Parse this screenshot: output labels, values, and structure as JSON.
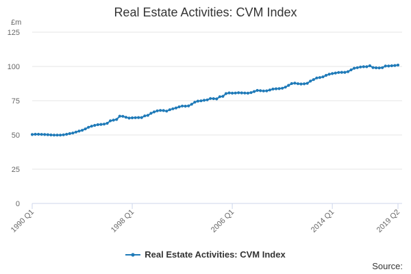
{
  "chart_data": {
    "type": "line",
    "title": "Real Estate Activities: CVM Index",
    "ylabel_unit": "£m",
    "ylim": [
      0,
      125
    ],
    "y_ticks": [
      0,
      25,
      50,
      75,
      100,
      125
    ],
    "x_tick_labels": [
      "1990 Q1",
      "1998 Q1",
      "2006 Q1",
      "2014 Q1",
      "2019 Q2"
    ],
    "x_tick_indices": [
      0,
      32,
      64,
      96,
      117
    ],
    "grid": "horizontal",
    "legend_position": "bottom",
    "color": "#1f7ab8",
    "series": [
      {
        "name": "Real Estate Activities: CVM Index",
        "values": [
          50.3,
          50.5,
          50.5,
          50.4,
          50.3,
          50.2,
          50.0,
          49.9,
          49.9,
          49.9,
          50.1,
          50.5,
          51.0,
          51.4,
          52.1,
          52.8,
          53.4,
          54.4,
          55.6,
          56.4,
          57.0,
          57.5,
          57.7,
          57.9,
          58.5,
          60.3,
          60.8,
          61.3,
          63.7,
          63.6,
          62.9,
          62.3,
          62.5,
          62.6,
          62.7,
          62.7,
          63.9,
          64.3,
          65.8,
          66.8,
          67.6,
          67.9,
          67.8,
          67.4,
          68.4,
          69.1,
          69.7,
          70.5,
          71.1,
          71.0,
          71.2,
          72.4,
          73.9,
          74.7,
          74.9,
          75.3,
          75.6,
          76.6,
          76.5,
          76.3,
          77.9,
          78.2,
          80.2,
          80.7,
          80.5,
          80.6,
          80.8,
          80.7,
          80.6,
          80.5,
          80.9,
          81.7,
          82.5,
          82.3,
          82.1,
          82.2,
          82.8,
          83.5,
          83.7,
          83.8,
          84.1,
          84.9,
          86.2,
          87.5,
          87.8,
          87.4,
          87.2,
          87.3,
          87.7,
          89.3,
          90.4,
          91.6,
          91.9,
          92.4,
          93.5,
          94.3,
          94.8,
          95.2,
          95.6,
          95.7,
          95.7,
          96.2,
          97.5,
          98.7,
          99.1,
          99.6,
          99.8,
          99.8,
          100.5,
          99.2,
          99.0,
          98.9,
          99.1,
          100.3,
          100.3,
          100.5,
          100.7,
          101.0
        ]
      }
    ]
  },
  "source_label": "Source:"
}
